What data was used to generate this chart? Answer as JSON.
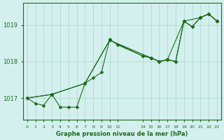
{
  "background_color": "#d4f0ee",
  "grid_color": "#aad4cc",
  "line_color": "#1a6b1a",
  "marker_color": "#1a6b1a",
  "title": "Graphe pression niveau de la mer (hPa)",
  "title_color": "#1a6b1a",
  "ylim": [
    1016.4,
    1019.6
  ],
  "yticks": [
    1017,
    1018,
    1019
  ],
  "series1": {
    "x": [
      0,
      1,
      2,
      3,
      4,
      5,
      6,
      7,
      8,
      9,
      10,
      11,
      14,
      15,
      16,
      17,
      18,
      19,
      20,
      21,
      22,
      23
    ],
    "y": [
      1017.0,
      1016.85,
      1016.8,
      1017.1,
      1016.75,
      1016.75,
      1016.75,
      1017.4,
      1017.55,
      1017.7,
      1018.6,
      1018.45,
      1018.15,
      1018.1,
      1018.0,
      1018.05,
      1018.0,
      1019.1,
      1018.95,
      1019.2,
      1019.3,
      1019.1
    ]
  },
  "series2": {
    "x": [
      0,
      3,
      7,
      10,
      14,
      15,
      16,
      17,
      18,
      19,
      21,
      22,
      23
    ],
    "y": [
      1017.0,
      1017.1,
      1017.4,
      1018.58,
      1018.15,
      1018.1,
      1018.0,
      1018.05,
      1018.0,
      1019.1,
      1019.2,
      1019.3,
      1019.1
    ]
  },
  "series3": {
    "x": [
      0,
      3,
      7,
      10,
      15,
      16,
      17,
      19,
      20,
      21,
      22,
      23
    ],
    "y": [
      1017.0,
      1017.1,
      1017.4,
      1018.58,
      1018.1,
      1018.0,
      1018.05,
      1019.1,
      1018.95,
      1019.2,
      1019.3,
      1019.1
    ]
  },
  "xticks": [
    0,
    1,
    2,
    3,
    4,
    5,
    6,
    7,
    8,
    9,
    10,
    11,
    14,
    15,
    16,
    17,
    18,
    19,
    20,
    21,
    22,
    23
  ],
  "xtick_labels": [
    "0",
    "1",
    "2",
    "3",
    "4",
    "5",
    "6",
    "7",
    "8",
    "9",
    "10",
    "11",
    "14",
    "15",
    "16",
    "17",
    "18",
    "19",
    "20",
    "21",
    "22",
    "23"
  ]
}
